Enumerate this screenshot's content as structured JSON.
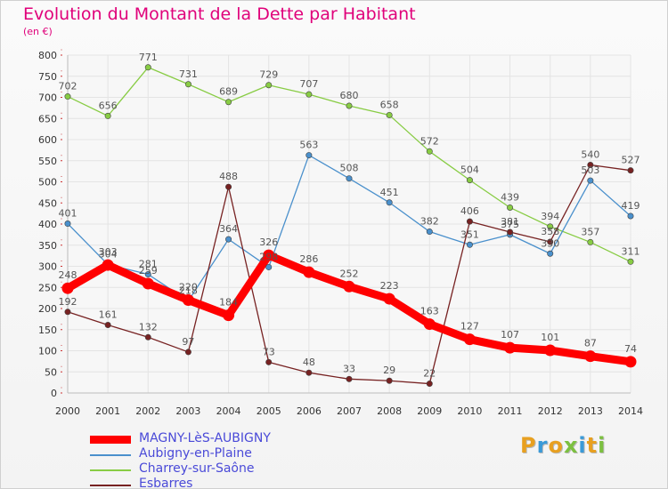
{
  "header": {
    "title": "Evolution du Montant de la Dette par Habitant",
    "unit": "(en €)"
  },
  "brand": {
    "text": "Proxiti",
    "letter_colors": [
      "#e8a020",
      "#3a9ad8",
      "#e8a020",
      "#7cc040",
      "#3a9ad8",
      "#e8a020",
      "#7cc040"
    ]
  },
  "colors": {
    "background": "#f7f7f7",
    "grid": "#e4e4e4",
    "axis_text": "#333333",
    "value_text": "#555555",
    "title": "#e0007a",
    "legend_text": "#4a4ad8"
  },
  "chart_data": {
    "type": "line",
    "title": "Evolution du Montant de la Dette par Habitant",
    "ylabel": "(en €)",
    "xlabel": "",
    "x": [
      2000,
      2001,
      2002,
      2003,
      2004,
      2005,
      2006,
      2007,
      2008,
      2009,
      2010,
      2011,
      2012,
      2013,
      2014
    ],
    "y_ticks": [
      0,
      50,
      100,
      150,
      200,
      250,
      300,
      350,
      400,
      450,
      500,
      550,
      600,
      650,
      700,
      750,
      800
    ],
    "ylim": [
      0,
      800
    ],
    "grid": true,
    "legend_position": "bottom-left",
    "series": [
      {
        "name": "Charrey-sur-Saône",
        "color": "#88cc44",
        "values": [
          702,
          656,
          771,
          731,
          689,
          729,
          707,
          680,
          658,
          572,
          504,
          439,
          394,
          357,
          311
        ]
      },
      {
        "name": "Aubigny-en-Plaine",
        "color": "#4a90cc",
        "values": [
          401,
          304,
          281,
          218,
          364,
          298,
          563,
          508,
          451,
          382,
          351,
          375,
          330,
          503,
          419
        ]
      },
      {
        "name": "Esbarres",
        "color": "#772222",
        "values": [
          192,
          161,
          132,
          97,
          488,
          73,
          48,
          33,
          29,
          22,
          406,
          381,
          358,
          540,
          527
        ]
      },
      {
        "name": "MAGNY-LèS-AUBIGNY",
        "color": "#ff0000",
        "values": [
          248,
          303,
          259,
          220,
          184,
          326,
          286,
          252,
          223,
          163,
          127,
          107,
          101,
          87,
          74
        ]
      }
    ],
    "legend_order": [
      "MAGNY-LèS-AUBIGNY",
      "Aubigny-en-Plaine",
      "Charrey-sur-Saône",
      "Esbarres"
    ]
  }
}
